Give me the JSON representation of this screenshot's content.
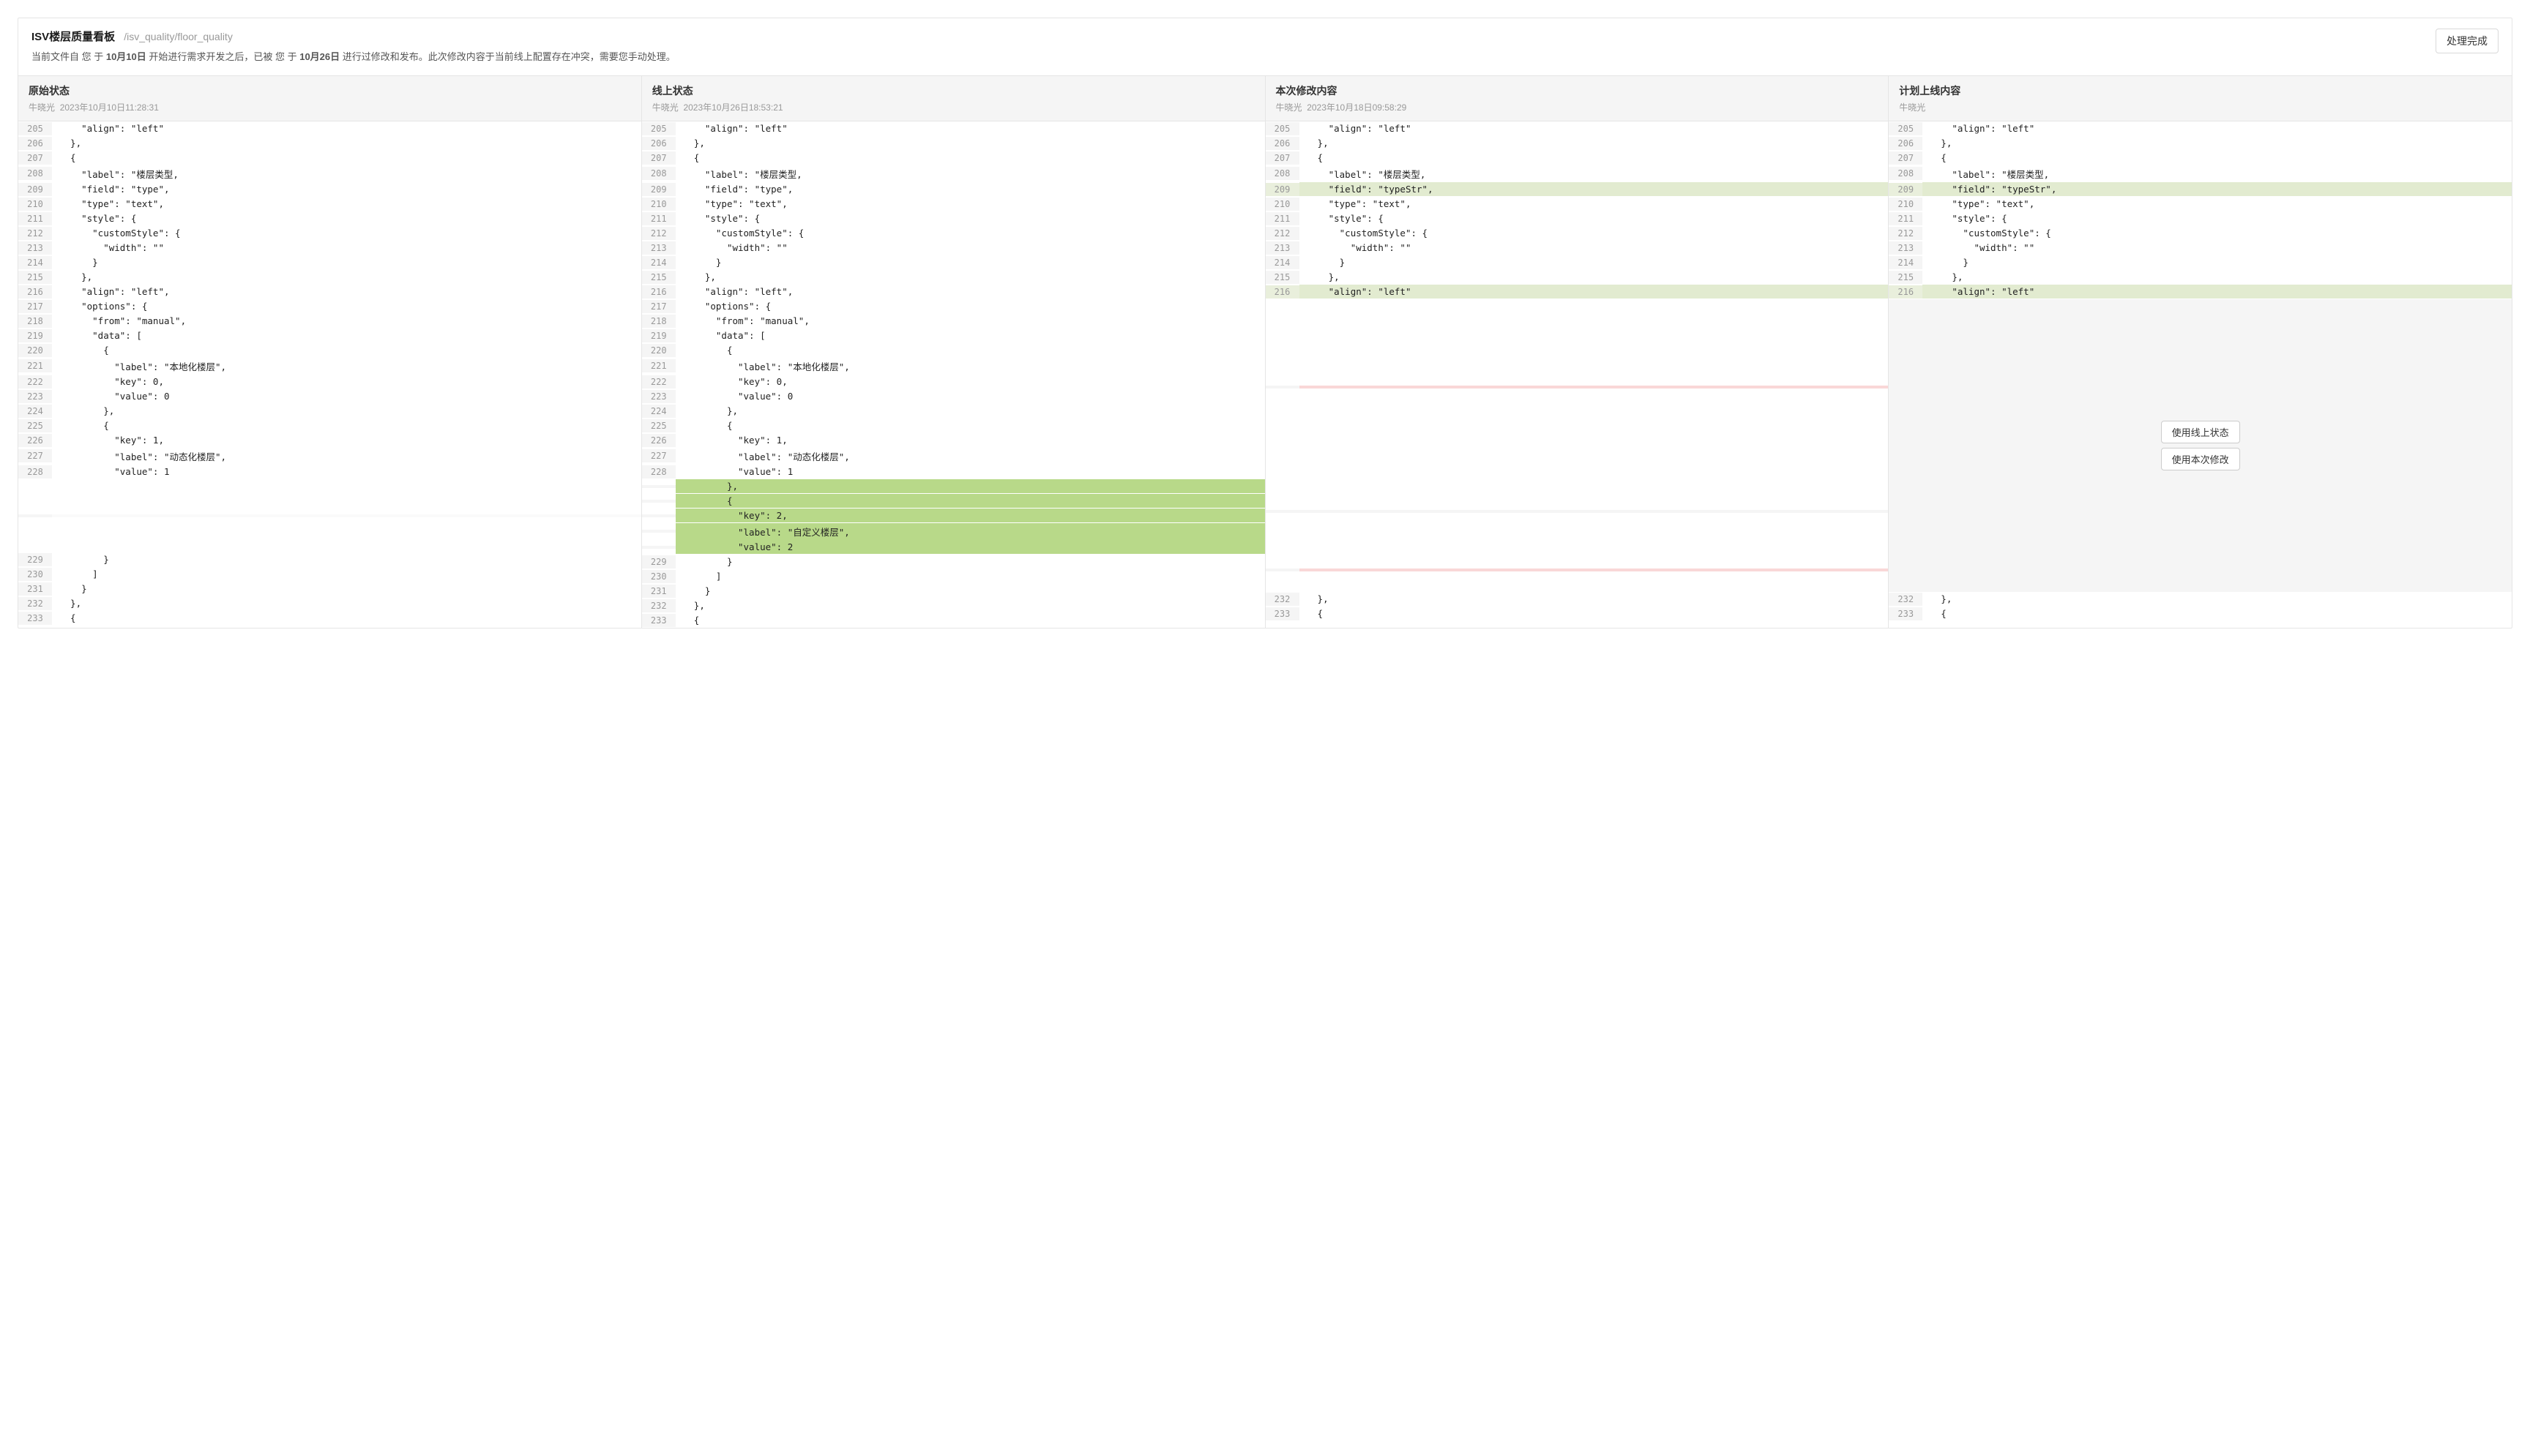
{
  "header": {
    "title": "ISV楼层质量看板",
    "path": "/isv_quality/floor_quality",
    "subtitle_prefix": "当前文件自 您 于 ",
    "subtitle_date1": "10月10日",
    "subtitle_mid": " 开始进行需求开发之后，已被 您 于 ",
    "subtitle_date2": "10月26日",
    "subtitle_suffix": " 进行过修改和发布。此次修改内容于当前线上配置存在冲突，需要您手动处理。",
    "action_button": "处理完成"
  },
  "columns": [
    {
      "title": "原始状态",
      "meta_author": "牛晓光",
      "meta_time": "2023年10月10日11:28:31"
    },
    {
      "title": "线上状态",
      "meta_author": "牛晓光",
      "meta_time": "2023年10月26日18:53:21"
    },
    {
      "title": "本次修改内容",
      "meta_author": "牛晓光",
      "meta_time": "2023年10月18日09:58:29"
    },
    {
      "title": "计划上线内容",
      "meta_author": "牛晓光",
      "meta_time": ""
    }
  ],
  "plan_actions": {
    "use_online": "使用线上状态",
    "use_current": "使用本次修改"
  },
  "col1_lines": [
    {
      "num": "205",
      "text": "    \"align\": \"left\"",
      "hl": ""
    },
    {
      "num": "206",
      "text": "  },",
      "hl": ""
    },
    {
      "num": "207",
      "text": "  {",
      "hl": ""
    },
    {
      "num": "208",
      "text": "    \"label\": \"楼层类型,",
      "hl": ""
    },
    {
      "num": "209",
      "text": "    \"field\": \"type\",",
      "hl": ""
    },
    {
      "num": "210",
      "text": "    \"type\": \"text\",",
      "hl": ""
    },
    {
      "num": "211",
      "text": "    \"style\": {",
      "hl": ""
    },
    {
      "num": "212",
      "text": "      \"customStyle\": {",
      "hl": ""
    },
    {
      "num": "213",
      "text": "        \"width\": \"\"",
      "hl": ""
    },
    {
      "num": "214",
      "text": "      }",
      "hl": ""
    },
    {
      "num": "215",
      "text": "    },",
      "hl": ""
    },
    {
      "num": "216",
      "text": "    \"align\": \"left\",",
      "hl": ""
    },
    {
      "num": "217",
      "text": "    \"options\": {",
      "hl": ""
    },
    {
      "num": "218",
      "text": "      \"from\": \"manual\",",
      "hl": ""
    },
    {
      "num": "219",
      "text": "      \"data\": [",
      "hl": ""
    },
    {
      "num": "220",
      "text": "        {",
      "hl": ""
    },
    {
      "num": "221",
      "text": "          \"label\": \"本地化楼层\",",
      "hl": ""
    },
    {
      "num": "222",
      "text": "          \"key\": 0,",
      "hl": ""
    },
    {
      "num": "223",
      "text": "          \"value\": 0",
      "hl": ""
    },
    {
      "num": "224",
      "text": "        },",
      "hl": ""
    },
    {
      "num": "225",
      "text": "        {",
      "hl": ""
    },
    {
      "num": "226",
      "text": "          \"key\": 1,",
      "hl": ""
    },
    {
      "num": "227",
      "text": "          \"label\": \"动态化楼层\",",
      "hl": ""
    },
    {
      "num": "228",
      "text": "          \"value\": 1",
      "hl": ""
    },
    {
      "num": "",
      "text": "",
      "hl": "hl-light",
      "spacer": true
    },
    {
      "num": "229",
      "text": "        }",
      "hl": ""
    },
    {
      "num": "230",
      "text": "      ]",
      "hl": ""
    },
    {
      "num": "231",
      "text": "    }",
      "hl": ""
    },
    {
      "num": "232",
      "text": "  },",
      "hl": ""
    },
    {
      "num": "233",
      "text": "  {",
      "hl": ""
    }
  ],
  "col2_lines": [
    {
      "num": "205",
      "text": "    \"align\": \"left\"",
      "hl": ""
    },
    {
      "num": "206",
      "text": "  },",
      "hl": ""
    },
    {
      "num": "207",
      "text": "  {",
      "hl": ""
    },
    {
      "num": "208",
      "text": "    \"label\": \"楼层类型,",
      "hl": ""
    },
    {
      "num": "209",
      "text": "    \"field\": \"type\",",
      "hl": ""
    },
    {
      "num": "210",
      "text": "    \"type\": \"text\",",
      "hl": ""
    },
    {
      "num": "211",
      "text": "    \"style\": {",
      "hl": ""
    },
    {
      "num": "212",
      "text": "      \"customStyle\": {",
      "hl": ""
    },
    {
      "num": "213",
      "text": "        \"width\": \"\"",
      "hl": ""
    },
    {
      "num": "214",
      "text": "      }",
      "hl": ""
    },
    {
      "num": "215",
      "text": "    },",
      "hl": ""
    },
    {
      "num": "216",
      "text": "    \"align\": \"left\",",
      "hl": ""
    },
    {
      "num": "217",
      "text": "    \"options\": {",
      "hl": ""
    },
    {
      "num": "218",
      "text": "      \"from\": \"manual\",",
      "hl": ""
    },
    {
      "num": "219",
      "text": "      \"data\": [",
      "hl": ""
    },
    {
      "num": "220",
      "text": "        {",
      "hl": ""
    },
    {
      "num": "221",
      "text": "          \"label\": \"本地化楼层\",",
      "hl": ""
    },
    {
      "num": "222",
      "text": "          \"key\": 0,",
      "hl": ""
    },
    {
      "num": "223",
      "text": "          \"value\": 0",
      "hl": ""
    },
    {
      "num": "224",
      "text": "        },",
      "hl": ""
    },
    {
      "num": "225",
      "text": "        {",
      "hl": ""
    },
    {
      "num": "226",
      "text": "          \"key\": 1,",
      "hl": ""
    },
    {
      "num": "227",
      "text": "          \"label\": \"动态化楼层\",",
      "hl": ""
    },
    {
      "num": "228",
      "text": "          \"value\": 1",
      "hl": ""
    },
    {
      "num": "",
      "text": "        },",
      "hl": "hl-green"
    },
    {
      "num": "",
      "text": "        {",
      "hl": "hl-green"
    },
    {
      "num": "",
      "text": "          \"key\": 2,",
      "hl": "hl-green"
    },
    {
      "num": "",
      "text": "          \"label\": \"自定义楼层\",",
      "hl": "hl-green"
    },
    {
      "num": "",
      "text": "          \"value\": 2",
      "hl": "hl-green"
    },
    {
      "num": "229",
      "text": "        }",
      "hl": ""
    },
    {
      "num": "230",
      "text": "      ]",
      "hl": ""
    },
    {
      "num": "231",
      "text": "    }",
      "hl": ""
    },
    {
      "num": "232",
      "text": "  },",
      "hl": ""
    },
    {
      "num": "233",
      "text": "  {",
      "hl": ""
    }
  ],
  "col3_lines": [
    {
      "num": "205",
      "text": "    \"align\": \"left\"",
      "hl": ""
    },
    {
      "num": "206",
      "text": "  },",
      "hl": ""
    },
    {
      "num": "207",
      "text": "  {",
      "hl": ""
    },
    {
      "num": "208",
      "text": "    \"label\": \"楼层类型,",
      "hl": ""
    },
    {
      "num": "209",
      "text": "    \"field\": \"typeStr\",",
      "hl": "hl-green-light"
    },
    {
      "num": "210",
      "text": "    \"type\": \"text\",",
      "hl": ""
    },
    {
      "num": "211",
      "text": "    \"style\": {",
      "hl": ""
    },
    {
      "num": "212",
      "text": "      \"customStyle\": {",
      "hl": ""
    },
    {
      "num": "213",
      "text": "        \"width\": \"\"",
      "hl": ""
    },
    {
      "num": "214",
      "text": "      }",
      "hl": ""
    },
    {
      "num": "215",
      "text": "    },",
      "hl": ""
    },
    {
      "num": "216",
      "text": "    \"align\": \"left\"",
      "hl": "hl-green-light"
    },
    {
      "num": "",
      "text": "",
      "hl": "hl-red",
      "bigspacer": true
    },
    {
      "num": "",
      "text": "",
      "hl": "hl-gray",
      "spacer": true
    },
    {
      "num": "",
      "text": "",
      "hl": "hl-red",
      "spacer3": true
    },
    {
      "num": "232",
      "text": "  },",
      "hl": ""
    },
    {
      "num": "233",
      "text": "  {",
      "hl": ""
    }
  ],
  "col4_lines": [
    {
      "num": "205",
      "text": "    \"align\": \"left\"",
      "hl": ""
    },
    {
      "num": "206",
      "text": "  },",
      "hl": ""
    },
    {
      "num": "207",
      "text": "  {",
      "hl": ""
    },
    {
      "num": "208",
      "text": "    \"label\": \"楼层类型,",
      "hl": ""
    },
    {
      "num": "209",
      "text": "    \"field\": \"typeStr\",",
      "hl": "hl-green-light"
    },
    {
      "num": "210",
      "text": "    \"type\": \"text\",",
      "hl": ""
    },
    {
      "num": "211",
      "text": "    \"style\": {",
      "hl": ""
    },
    {
      "num": "212",
      "text": "      \"customStyle\": {",
      "hl": ""
    },
    {
      "num": "213",
      "text": "        \"width\": \"\"",
      "hl": ""
    },
    {
      "num": "214",
      "text": "      }",
      "hl": ""
    },
    {
      "num": "215",
      "text": "    },",
      "hl": ""
    },
    {
      "num": "216",
      "text": "    \"align\": \"left\"",
      "hl": "hl-green-light"
    },
    {
      "num": "",
      "text": "",
      "hl": "plan-actions"
    },
    {
      "num": "232",
      "text": "  },",
      "hl": ""
    },
    {
      "num": "233",
      "text": "  {",
      "hl": ""
    }
  ],
  "colors": {
    "border": "#e5e5e5",
    "gray_bg": "#f5f5f5",
    "green_light": "#e2ebd0",
    "green": "#b8d989",
    "red": "#f9d7d7",
    "text_muted": "#999"
  }
}
